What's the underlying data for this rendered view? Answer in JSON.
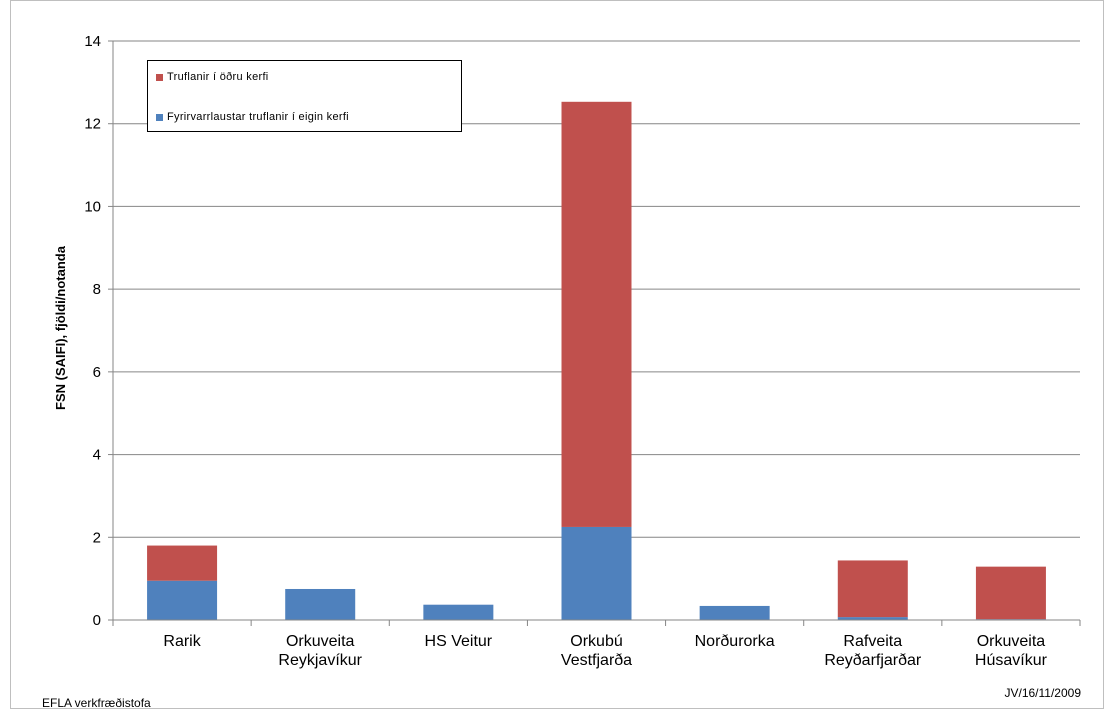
{
  "chart_data": {
    "type": "bar",
    "stacked": true,
    "categories": [
      [
        "Rarik"
      ],
      [
        "Orkuveita",
        "Reykjavíkur"
      ],
      [
        "HS Veitur"
      ],
      [
        "Orkubú",
        "Vestfjarða"
      ],
      [
        "Norðurorka"
      ],
      [
        "Rafveita",
        "Reyðarfjarðar"
      ],
      [
        "Orkuveita",
        "Húsavíkur"
      ]
    ],
    "series": [
      {
        "name": "Fyrirvarrlaustar truflanir í eigin kerfi",
        "color": "#4f81bd",
        "values": [
          0.95,
          0.75,
          0.37,
          2.25,
          0.34,
          0.07,
          0.02
        ]
      },
      {
        "name": "Truflanir í öðru kerfi",
        "color": "#c0504d",
        "values": [
          0.85,
          0.0,
          0.0,
          10.28,
          0.0,
          1.37,
          1.27
        ]
      }
    ],
    "ylabel": "FSN (SAIFI), fjöldi/notanda",
    "xlabel": "",
    "ylim": [
      0,
      14
    ],
    "yticks": [
      0,
      2,
      4,
      6,
      8,
      10,
      12,
      14
    ],
    "grid": true,
    "legend_position": "top-left"
  },
  "footer": {
    "left": "EFLA verkfræðistofa",
    "right": "JV/16/11/2009"
  },
  "legend": {
    "items": [
      {
        "label": "Truflanir í öðru kerfi",
        "color": "#c0504d"
      },
      {
        "label": "Fyrirvarrlaustar truflanir í eigin kerfi",
        "color": "#4f81bd"
      }
    ]
  }
}
